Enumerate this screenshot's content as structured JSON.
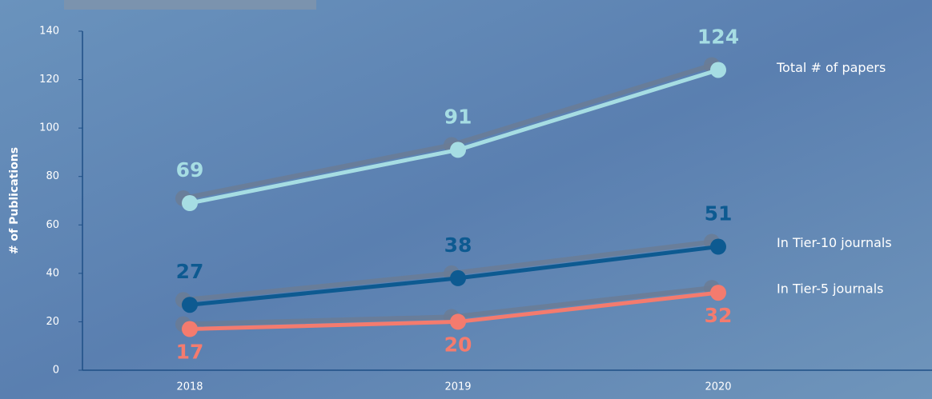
{
  "chart_data": {
    "type": "line",
    "y_label": "# of Publications",
    "categories": [
      "2018",
      "2019",
      "2020"
    ],
    "series": [
      {
        "name": "Total # of papers",
        "color": "#a6dde3",
        "label_color": "#a6dde3",
        "values": [
          69,
          91,
          124
        ]
      },
      {
        "name": "In Tier-10 journals",
        "color": "#0d5a91",
        "label_color": "#0d5a91",
        "values": [
          27,
          38,
          51
        ]
      },
      {
        "name": "In Tier-5 journals",
        "color": "#f47b6e",
        "label_color": "#f47b6e",
        "values": [
          17,
          20,
          32
        ]
      }
    ],
    "ylim": [
      0,
      140
    ],
    "yticks": [
      0,
      20,
      40,
      60,
      80,
      100,
      120,
      140
    ]
  }
}
